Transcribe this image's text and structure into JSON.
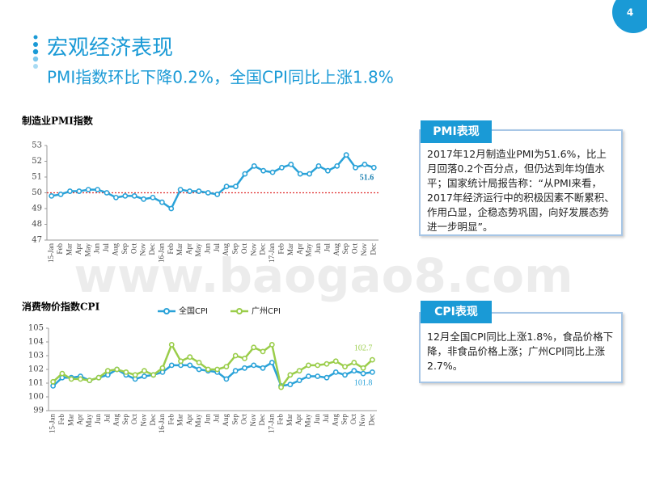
{
  "page_number": "4",
  "header": {
    "title": "宏观经济表现",
    "subtitle": "PMI指数环比下降0.2%，全国CPI同比上涨1.8%"
  },
  "watermark": "www.baogao8.com",
  "boxes": [
    {
      "title": "PMI表现",
      "text": "2017年12月制造业PMI为51.6%，比上月回落0.2个百分点，但仍达到年均值水平；国家统计局报告称：“从PMI来看，2017年经济运行中的积极因素不断累积、作用凸显，企稳态势巩固，向好发展态势进一步明显”。"
    },
    {
      "title": "CPI表现",
      "text": "12月全国CPI同比上涨1.8%，食品价格下降，非食品价格上涨；广州CPI同比上涨2.7%。"
    }
  ],
  "chart_data": [
    {
      "type": "line",
      "title": "制造业PMI指数",
      "categories": [
        "15-Jan",
        "Feb",
        "Mar",
        "Apr",
        "May",
        "Jun",
        "Jul",
        "Aug",
        "Sep",
        "Oct",
        "Nov",
        "Dec",
        "16-Jan",
        "Feb",
        "Mar",
        "Apr",
        "May",
        "Jun",
        "Jul",
        "Aug",
        "Sep",
        "Oct",
        "Nov",
        "Dec",
        "17-Jan",
        "Feb",
        "Mar",
        "Apr",
        "May",
        "Jun",
        "Jul",
        "Aug",
        "Sep",
        "Oct",
        "Nov",
        "Dec"
      ],
      "series": [
        {
          "color": "#2aa2d8",
          "values": [
            49.8,
            49.9,
            50.1,
            50.1,
            50.2,
            50.2,
            50.0,
            49.7,
            49.8,
            49.8,
            49.6,
            49.7,
            49.4,
            49.0,
            50.2,
            50.1,
            50.1,
            50.0,
            49.9,
            50.4,
            50.4,
            51.2,
            51.7,
            51.4,
            51.3,
            51.6,
            51.8,
            51.2,
            51.2,
            51.7,
            51.4,
            51.7,
            52.4,
            51.6,
            51.8,
            51.6
          ]
        }
      ],
      "ylim": [
        47,
        53
      ],
      "yticks": [
        47,
        48,
        49,
        50,
        51,
        52,
        53
      ],
      "reference_line": 50,
      "reference_color": "#e03030",
      "label_last": true
    },
    {
      "type": "line",
      "title": "消费物价指数CPI",
      "categories": [
        "15-Jan",
        "Feb",
        "Mar",
        "Apr",
        "May",
        "Jun",
        "Jul",
        "Aug",
        "Sep",
        "Oct",
        "Nov",
        "Dec",
        "16-Jan",
        "Feb",
        "Mar",
        "Apr",
        "May",
        "Jun",
        "Jul",
        "Aug",
        "Sep",
        "Oct",
        "Nov",
        "Dec",
        "17-Jan",
        "Feb",
        "Mar",
        "Apr",
        "May",
        "Jun",
        "Jul",
        "Aug",
        "Sep",
        "Oct",
        "Nov",
        "Dec"
      ],
      "series": [
        {
          "name": "全国CPI",
          "color": "#2aa2d8",
          "values": [
            100.8,
            101.4,
            101.4,
            101.5,
            101.2,
            101.4,
            101.6,
            102.0,
            101.6,
            101.3,
            101.5,
            101.6,
            101.8,
            102.3,
            102.3,
            102.3,
            102.0,
            101.9,
            101.8,
            101.3,
            101.9,
            102.1,
            102.3,
            102.1,
            102.5,
            100.8,
            100.9,
            101.2,
            101.5,
            101.5,
            101.4,
            101.8,
            101.6,
            101.9,
            101.7,
            101.8
          ]
        },
        {
          "name": "广州CPI",
          "color": "#9acd4a",
          "values": [
            101.1,
            101.7,
            101.3,
            101.3,
            101.2,
            101.4,
            101.9,
            102.0,
            101.8,
            101.6,
            101.9,
            101.6,
            102.1,
            103.8,
            102.6,
            102.9,
            102.5,
            102.0,
            102.0,
            102.2,
            103.0,
            102.8,
            103.6,
            103.3,
            103.8,
            100.7,
            101.6,
            101.9,
            102.3,
            102.3,
            102.4,
            102.6,
            102.2,
            102.5,
            102.1,
            102.7
          ]
        }
      ],
      "ylim": [
        99,
        105
      ],
      "yticks": [
        99,
        100,
        101,
        102,
        103,
        104,
        105
      ],
      "legend": "top",
      "label_last": true
    }
  ]
}
